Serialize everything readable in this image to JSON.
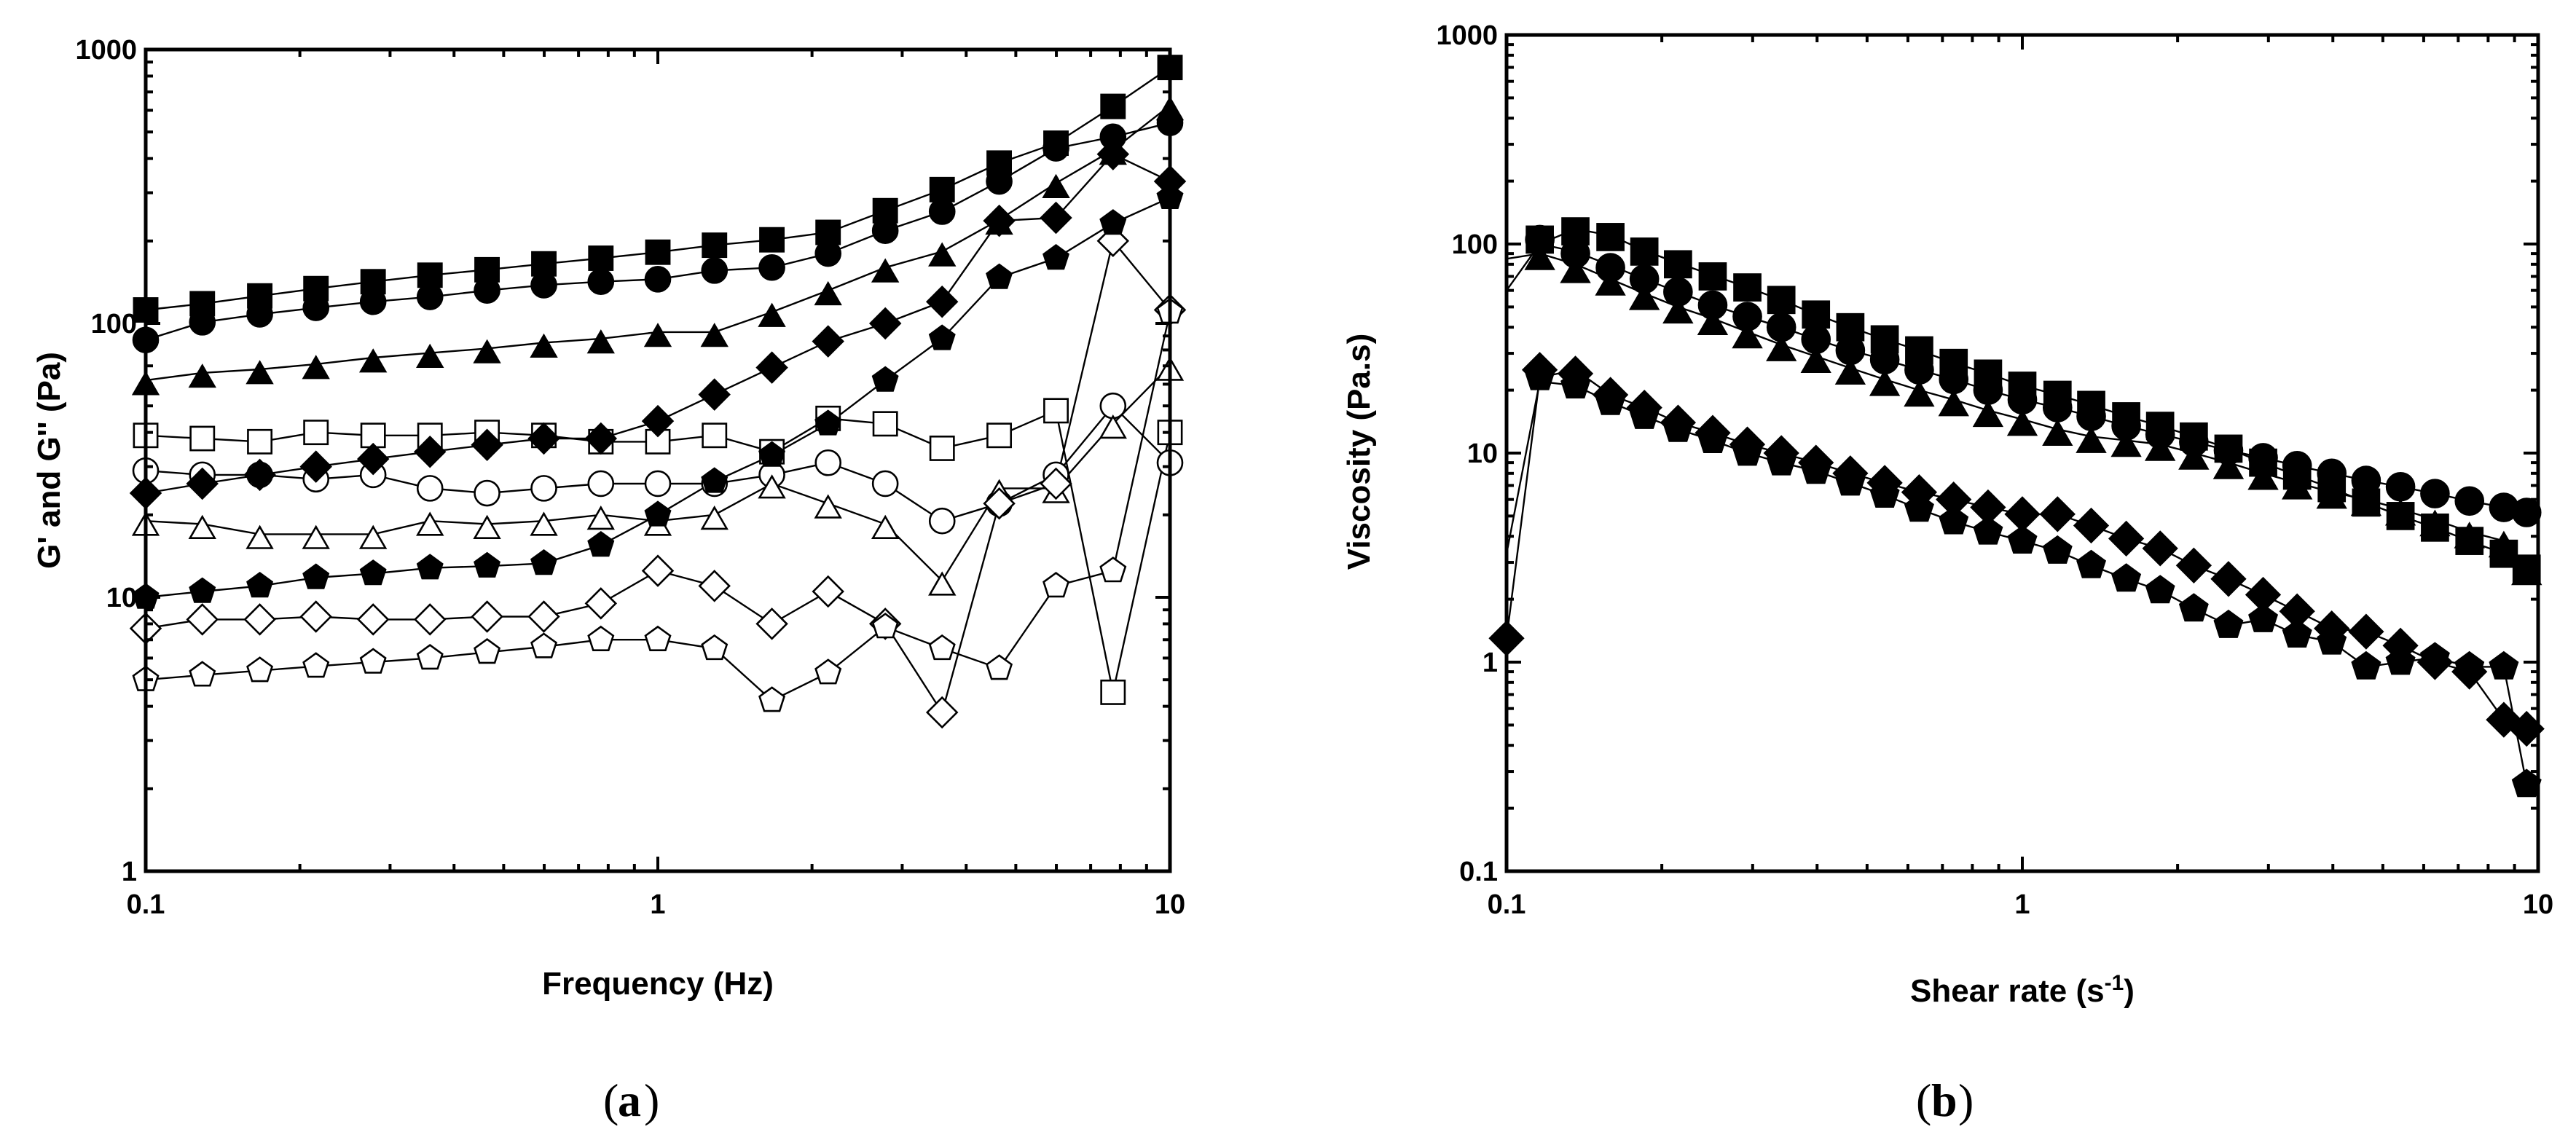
{
  "chart_data": [
    {
      "id": "a",
      "type": "scatter",
      "panel_label": "a",
      "xlabel": "Frequency (Hz)",
      "ylabel": "G' and G'' (Pa)",
      "xscale": "log",
      "yscale": "log",
      "xlim": [
        0.1,
        10
      ],
      "ylim": [
        1,
        1000
      ],
      "x_ticks": [
        0.1,
        1,
        10
      ],
      "x_tick_labels": [
        "0.1",
        "1",
        "10"
      ],
      "y_ticks": [
        1,
        10,
        100,
        1000
      ],
      "y_tick_labels": [
        "1",
        "10",
        "100",
        "1000"
      ],
      "x": [
        0.1,
        0.129,
        0.167,
        0.215,
        0.278,
        0.359,
        0.464,
        0.599,
        0.774,
        1.0,
        1.29,
        1.67,
        2.15,
        2.78,
        3.59,
        4.64,
        5.99,
        7.74,
        10.0
      ],
      "series": [
        {
          "name": "filled square",
          "marker": "square",
          "filled": true,
          "values": [
            112,
            118,
            126,
            134,
            142,
            150,
            157,
            165,
            173,
            182,
            193,
            202,
            215,
            258,
            308,
            385,
            455,
            620,
            860
          ]
        },
        {
          "name": "filled circle",
          "marker": "circle",
          "filled": true,
          "values": [
            87,
            101,
            108,
            114,
            120,
            125,
            132,
            138,
            142,
            145,
            156,
            160,
            180,
            218,
            256,
            330,
            436,
            480,
            540
          ]
        },
        {
          "name": "filled triangle",
          "marker": "triangle",
          "filled": true,
          "values": [
            62,
            66,
            68,
            71,
            75,
            78,
            81,
            85,
            88,
            93,
            93,
            110,
            132,
            160,
            183,
            239,
            325,
            430,
            625
          ]
        },
        {
          "name": "filled diamond",
          "marker": "diamond",
          "filled": true,
          "values": [
            24,
            26,
            28,
            30,
            32,
            34,
            36,
            38,
            38,
            44,
            55,
            69,
            86,
            100,
            120,
            237,
            243,
            415,
            330
          ]
        },
        {
          "name": "filled pentagon",
          "marker": "pentagon",
          "filled": true,
          "values": [
            10,
            10.5,
            11,
            11.8,
            12.2,
            12.8,
            13,
            13.3,
            15.5,
            20,
            26.5,
            33,
            43,
            62,
            88,
            147,
            173,
            232,
            288
          ]
        },
        {
          "name": "open square",
          "marker": "square",
          "filled": false,
          "values": [
            39,
            38,
            37,
            40,
            39,
            39,
            40,
            39,
            37,
            37,
            39,
            34,
            45,
            43,
            35,
            39,
            48,
            4.5,
            40
          ]
        },
        {
          "name": "open circle",
          "marker": "circle",
          "filled": false,
          "values": [
            29,
            28,
            28,
            27,
            28,
            25,
            24,
            25,
            26,
            26,
            26,
            28,
            31,
            26,
            19,
            22,
            28,
            50,
            31
          ]
        },
        {
          "name": "open triangle",
          "marker": "triangle",
          "filled": false,
          "values": [
            19,
            18.5,
            17,
            17,
            17,
            19,
            18.5,
            19,
            20,
            19,
            20,
            26,
            22,
            18.5,
            11.5,
            25,
            25,
            43,
            70
          ]
        },
        {
          "name": "open diamond",
          "marker": "diamond",
          "filled": false,
          "values": [
            7.7,
            8.3,
            8.3,
            8.5,
            8.3,
            8.3,
            8.5,
            8.5,
            9.5,
            12.5,
            11,
            8,
            10.5,
            8,
            3.8,
            22,
            26,
            200,
            112
          ]
        },
        {
          "name": "open pentagon",
          "marker": "pentagon",
          "filled": false,
          "values": [
            5,
            5.2,
            5.4,
            5.6,
            5.8,
            6,
            6.3,
            6.6,
            7,
            7,
            6.5,
            4.2,
            5.3,
            7.8,
            6.5,
            5.5,
            11,
            12.5,
            110
          ]
        }
      ]
    },
    {
      "id": "b",
      "type": "scatter",
      "panel_label": "b",
      "xlabel": "Shear rate (s",
      "xlabel_sup": "-1",
      "xlabel_tail": ")",
      "ylabel": "Viscosity (Pa.s)",
      "xscale": "log",
      "yscale": "log",
      "xlim": [
        0.1,
        10
      ],
      "ylim": [
        0.1,
        1000
      ],
      "x_ticks": [
        0.1,
        1,
        10
      ],
      "x_tick_labels": [
        "0.1",
        "1",
        "10"
      ],
      "y_ticks": [
        0.1,
        1,
        10,
        100,
        1000
      ],
      "y_tick_labels": [
        "0.1",
        "1",
        "10",
        "100",
        "1000"
      ],
      "x": [
        0.1,
        0.116,
        0.136,
        0.159,
        0.185,
        0.215,
        0.251,
        0.293,
        0.341,
        0.398,
        0.464,
        0.541,
        0.631,
        0.736,
        0.858,
        1.0,
        1.17,
        1.36,
        1.59,
        1.85,
        2.15,
        2.51,
        2.93,
        3.41,
        3.98,
        4.64,
        5.41,
        6.31,
        7.36,
        8.58,
        9.5
      ],
      "series": [
        {
          "name": "filled square",
          "marker": "square",
          "filled": true,
          "values": [
            null,
            105,
            115,
            108,
            92,
            80,
            70,
            62,
            54,
            46,
            40,
            35,
            31,
            27,
            24,
            21,
            19,
            17,
            15,
            13.5,
            12,
            10.5,
            9,
            7.8,
            6.8,
            5.8,
            5,
            4.4,
            3.8,
            3.3,
            2.8
          ],
          "line": [
            60,
            100,
            118,
            110,
            93,
            81,
            71,
            62,
            54,
            46,
            40,
            35,
            31,
            27,
            24,
            21,
            19,
            17,
            15,
            13.5,
            12,
            10.5,
            9,
            7.8,
            6.8,
            5.8,
            5,
            4.4,
            3.8,
            3.3,
            2.8
          ]
        },
        {
          "name": "filled circle",
          "marker": "circle",
          "filled": true,
          "values": [
            null,
            105,
            90,
            77,
            68,
            59,
            51,
            45,
            40,
            35,
            31,
            28,
            25,
            22.5,
            20,
            18,
            16.5,
            15,
            13.5,
            12.3,
            11.3,
            10.3,
            9.5,
            8.7,
            8,
            7.4,
            6.9,
            6.4,
            5.9,
            5.5,
            5.2
          ],
          "line": [
            null,
            100,
            92,
            79,
            68,
            59,
            51,
            45,
            40,
            35,
            31,
            28,
            25,
            22.5,
            20,
            18,
            16.5,
            15,
            13.5,
            12.3,
            11.3,
            10.3,
            9.5,
            8.7,
            8,
            7.4,
            6.9,
            6.4,
            5.9,
            5.5,
            5.2
          ]
        },
        {
          "name": "filled triangle",
          "marker": "triangle",
          "filled": true,
          "values": [
            null,
            90,
            78,
            68,
            58,
            50,
            44,
            38,
            33,
            29,
            25.5,
            22.5,
            20,
            18,
            16,
            14.5,
            13,
            12,
            11.5,
            11,
            10,
            9,
            8,
            7.2,
            6.5,
            6,
            5.4,
            4.8,
            4.2,
            3.8,
            2.8
          ],
          "line": [
            85,
            90,
            80,
            68,
            58,
            50,
            44,
            38,
            33,
            29,
            25.5,
            22.5,
            20,
            18,
            16,
            14.5,
            13,
            12,
            11.5,
            11,
            10,
            9,
            8,
            7.2,
            6.5,
            6,
            5.4,
            4.8,
            4.2,
            3.8,
            2.8
          ]
        },
        {
          "name": "filled diamond",
          "marker": "diamond",
          "filled": true,
          "values": [
            1.3,
            25,
            24,
            19,
            16.5,
            14,
            12.5,
            11,
            10,
            9,
            8,
            7.2,
            6.5,
            6,
            5.5,
            5.1,
            5.1,
            4.5,
            3.9,
            3.5,
            2.9,
            2.5,
            2.1,
            1.75,
            1.45,
            1.4,
            1.2,
            1.0,
            0.9,
            0.53,
            0.48
          ],
          "line": [
            1.3,
            23,
            25,
            19,
            16.5,
            14,
            12.5,
            11,
            10,
            9,
            8,
            7.2,
            6.5,
            6,
            5.5,
            5.1,
            5.1,
            4.5,
            3.9,
            3.5,
            2.9,
            2.5,
            2.1,
            1.75,
            1.45,
            1.4,
            1.2,
            1.0,
            0.9,
            0.53,
            0.48
          ]
        },
        {
          "name": "filled pentagon",
          "marker": "pentagon",
          "filled": true,
          "values": [
            null,
            23,
            21,
            17.5,
            15,
            13,
            11.5,
            10,
            9,
            8.2,
            7.2,
            6.3,
            5.4,
            4.7,
            4.2,
            3.8,
            3.4,
            2.9,
            2.5,
            2.2,
            1.8,
            1.5,
            1.6,
            1.35,
            1.25,
            0.95,
            1.0,
            1.05,
            0.95,
            0.95,
            0.26
          ],
          "line": [
            3.3,
            22,
            21,
            17.5,
            15,
            13,
            11.5,
            10,
            9,
            8.2,
            7.2,
            6.3,
            5.4,
            4.7,
            4.2,
            3.8,
            3.4,
            2.9,
            2.5,
            2.2,
            1.8,
            1.5,
            1.6,
            1.35,
            1.25,
            0.95,
            1.0,
            1.05,
            0.95,
            0.95,
            0.26
          ]
        }
      ]
    }
  ]
}
